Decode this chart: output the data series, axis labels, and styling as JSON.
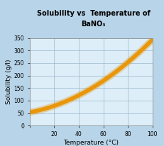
{
  "title_line1": "Solubility vs  Temperature of",
  "title_line2": "BaNO₃",
  "xlabel": "Temperature (°C)",
  "ylabel": "Solubility (g/l)",
  "background_color": "#b8d4e8",
  "plot_bg_color": "#ddeef8",
  "grid_color": "#9ab8cc",
  "line_color": "#e8960a",
  "line_width": 4.0,
  "x_data": [
    0,
    10,
    20,
    30,
    40,
    50,
    60,
    70,
    80,
    90,
    100
  ],
  "y_data": [
    50,
    65,
    82,
    100,
    120,
    145,
    175,
    210,
    260,
    300,
    340
  ],
  "xlim": [
    0,
    100
  ],
  "ylim": [
    0,
    350
  ],
  "xticks": [
    0,
    20,
    40,
    60,
    80,
    100
  ],
  "yticks": [
    0,
    50,
    100,
    150,
    200,
    250,
    300,
    350
  ],
  "title_fontsize": 7.0,
  "label_fontsize": 6.5,
  "tick_fontsize": 5.5
}
